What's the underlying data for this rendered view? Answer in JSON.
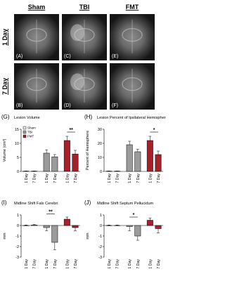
{
  "figure": {
    "columns": [
      "Sham",
      "TBI",
      "FMT"
    ],
    "rows": [
      "1 Day",
      "7 Day"
    ],
    "panels": [
      [
        "(A)",
        "(C)",
        "(E)"
      ],
      [
        "(B)",
        "(D)",
        "(F)"
      ]
    ]
  },
  "chart_data": [
    {
      "type": "bar",
      "panel": "(G)",
      "title": "Lesion Volume",
      "y_label": "Volume (cm³)",
      "categories": [
        "1 Day",
        "7 Day"
      ],
      "series": [
        {
          "name": "Sham",
          "color": "#e6e6e6",
          "values": [
            0.1,
            0.1
          ],
          "errors": [
            0.05,
            0.05
          ]
        },
        {
          "name": "TBI",
          "color": "#9b9b9b",
          "values": [
            6.5,
            5.2
          ],
          "errors": [
            1.2,
            0.8
          ]
        },
        {
          "name": "FMT",
          "color": "#a8202a",
          "values": [
            11,
            6.2
          ],
          "errors": [
            1.5,
            1.3
          ]
        }
      ],
      "ylim": [
        0,
        15
      ],
      "yticks": [
        0,
        5,
        10,
        15
      ],
      "significance": "**",
      "legend": "top-left"
    },
    {
      "type": "bar",
      "panel": "(H)",
      "title": "Lesion Percent of Ipsilateral Hemisphere",
      "y_label": "Percent of Hemisphere",
      "categories": [
        "1 Day",
        "7 Day"
      ],
      "series": [
        {
          "color": "#e6e6e6",
          "values": [
            0.2,
            0.2
          ],
          "errors": [
            0.1,
            0.1
          ]
        },
        {
          "color": "#9b9b9b",
          "values": [
            19,
            14
          ],
          "errors": [
            2.5,
            1.8
          ]
        },
        {
          "color": "#a8202a",
          "values": [
            22,
            12
          ],
          "errors": [
            3,
            2.5
          ]
        }
      ],
      "ylim": [
        0,
        30
      ],
      "yticks": [
        0,
        10,
        20,
        30
      ],
      "significance": "*"
    },
    {
      "type": "bar",
      "panel": "(I)",
      "title": "Midline Shift Falx Cerebri",
      "y_label": "mm",
      "categories": [
        "1 Day",
        "7 Day"
      ],
      "series": [
        {
          "color": "#e6e6e6",
          "values": [
            0,
            0.05
          ],
          "errors": [
            0.05,
            0.05
          ]
        },
        {
          "color": "#9b9b9b",
          "values": [
            -0.2,
            -1.6
          ],
          "errors": [
            0.3,
            0.7
          ]
        },
        {
          "color": "#a8202a",
          "values": [
            0.6,
            -0.2
          ],
          "errors": [
            0.2,
            0.3
          ]
        }
      ],
      "ylim": [
        -3,
        1
      ],
      "yticks": [
        -3,
        -2,
        -1,
        0,
        1
      ],
      "significance": "**"
    },
    {
      "type": "bar",
      "panel": "(J)",
      "title": "Midline Shift Septum Pellucidum",
      "y_label": "mm",
      "categories": [
        "1 Day",
        "7 Day"
      ],
      "series": [
        {
          "color": "#e6e6e6",
          "values": [
            0,
            0
          ],
          "errors": [
            0.05,
            0.05
          ]
        },
        {
          "color": "#9b9b9b",
          "values": [
            -0.1,
            -1.0
          ],
          "errors": [
            0.4,
            0.4
          ]
        },
        {
          "color": "#a8202a",
          "values": [
            0.5,
            -0.3
          ],
          "errors": [
            0.2,
            0.4
          ]
        }
      ],
      "ylim": [
        -3,
        1
      ],
      "yticks": [
        -3,
        -2,
        -1,
        0,
        1
      ],
      "significance": "*"
    }
  ]
}
